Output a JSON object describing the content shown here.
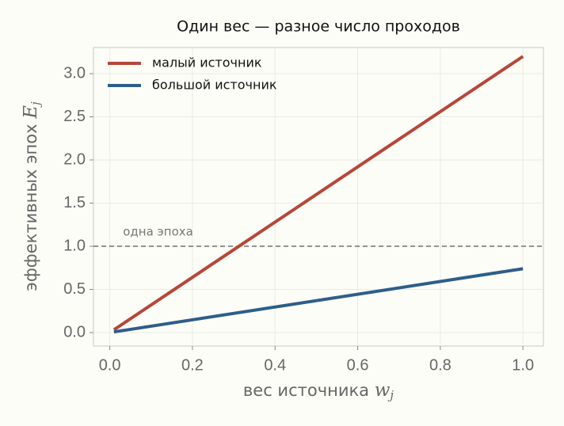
{
  "chart_data": {
    "type": "line",
    "title": "Один вес — разное число проходов",
    "xlabel": "вес источника",
    "xlabel_symbol": "w",
    "xlabel_sub": "j",
    "ylabel": "эффективных эпох",
    "ylabel_symbol": "E",
    "ylabel_sub": "j",
    "x": [
      0.01,
      1.0
    ],
    "series": [
      {
        "name": "малый источник",
        "color": "#b5473a",
        "values": [
          0.032,
          3.2
        ]
      },
      {
        "name": "большой источник",
        "color": "#2e5e8a",
        "values": [
          0.0074,
          0.74
        ]
      }
    ],
    "hline": {
      "value": 1.0,
      "label": "одна эпоха",
      "label_x": 0.03,
      "color": "#707070"
    },
    "xlim": [
      -0.0395,
      1.0495
    ],
    "ylim": [
      -0.156,
      3.303
    ],
    "xticks": [
      {
        "value": 0,
        "label": "0.0"
      },
      {
        "value": 0.2,
        "label": "0.2"
      },
      {
        "value": 0.4,
        "label": "0.4"
      },
      {
        "value": 0.6,
        "label": "0.6"
      },
      {
        "value": 0.8,
        "label": "0.8"
      },
      {
        "value": 1.0,
        "label": "1.0"
      }
    ],
    "yticks": [
      {
        "value": 0,
        "label": "0.0"
      },
      {
        "value": 0.5,
        "label": "0.5"
      },
      {
        "value": 1.0,
        "label": "1.0"
      },
      {
        "value": 1.5,
        "label": "1.5"
      },
      {
        "value": 2.0,
        "label": "2.0"
      },
      {
        "value": 2.5,
        "label": "2.5"
      },
      {
        "value": 3.0,
        "label": "3.0"
      }
    ],
    "grid": true,
    "legend": "upper-left"
  }
}
